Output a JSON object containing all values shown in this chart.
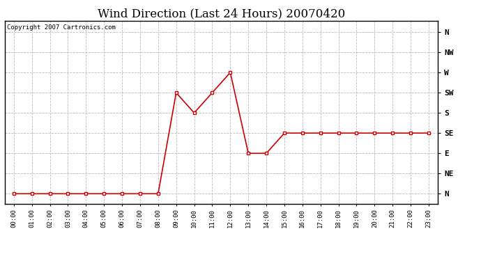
{
  "title": "Wind Direction (Last 24 Hours) 20070420",
  "copyright": "Copyright 2007 Cartronics.com",
  "hours": [
    "00:00",
    "01:00",
    "02:00",
    "03:00",
    "04:00",
    "05:00",
    "06:00",
    "07:00",
    "08:00",
    "09:00",
    "10:00",
    "11:00",
    "12:00",
    "13:00",
    "14:00",
    "15:00",
    "16:00",
    "17:00",
    "18:00",
    "19:00",
    "20:00",
    "21:00",
    "22:00",
    "23:00"
  ],
  "values": [
    0,
    0,
    0,
    0,
    0,
    0,
    0,
    0,
    0,
    225,
    180,
    225,
    270,
    90,
    90,
    135,
    135,
    135,
    135,
    135,
    135,
    135,
    135,
    135
  ],
  "yticks": [
    360,
    315,
    270,
    225,
    180,
    135,
    90,
    45,
    0
  ],
  "ytick_labels": [
    "N",
    "NW",
    "W",
    "SW",
    "S",
    "SE",
    "E",
    "NE",
    "N"
  ],
  "line_color": "#cc0000",
  "marker": "s",
  "marker_size": 3,
  "marker_color": "#cc0000",
  "bg_color": "#ffffff",
  "grid_color": "#bbbbbb",
  "title_fontsize": 12,
  "ylim": [
    -22,
    385
  ],
  "figsize": [
    6.9,
    3.75
  ],
  "dpi": 100
}
